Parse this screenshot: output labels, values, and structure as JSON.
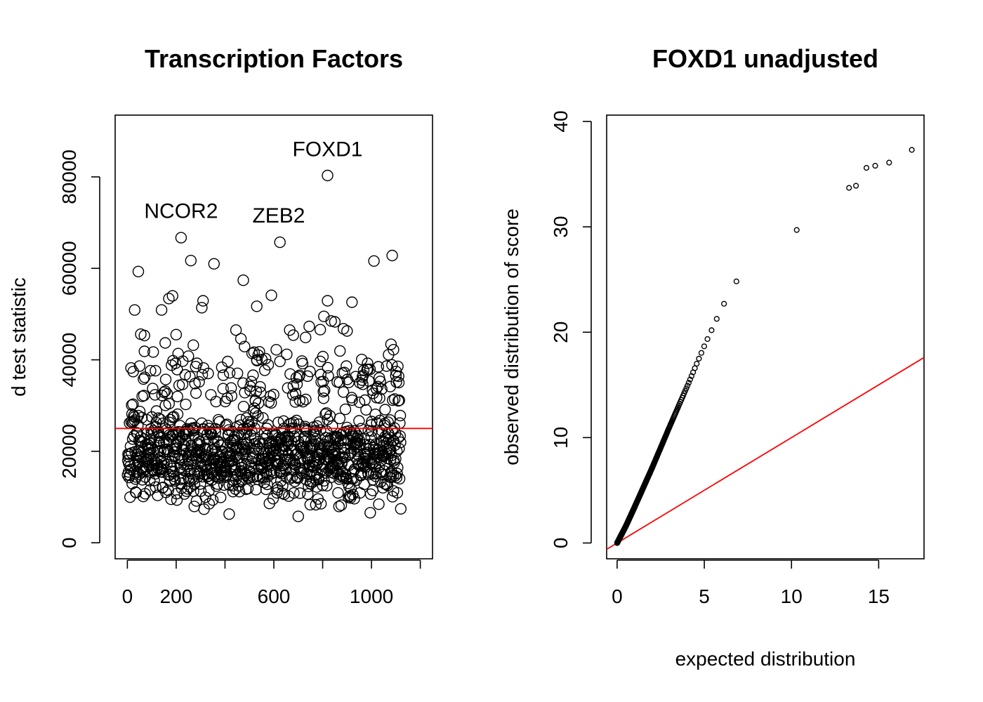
{
  "chart_data": [
    {
      "type": "scatter",
      "title": "Transcription Factors",
      "xlabel": "",
      "ylabel": "d test statistic",
      "xlim": [
        -50,
        1250
      ],
      "ylim": [
        -3500,
        93500
      ],
      "x_ticks": [
        0,
        200,
        400,
        600,
        800,
        1000,
        1200
      ],
      "x_tick_labels": [
        "0",
        "200",
        "",
        "600",
        "",
        "1000",
        ""
      ],
      "y_ticks": [
        0,
        20000,
        40000,
        60000,
        80000
      ],
      "y_tick_labels": [
        "0",
        "20000",
        "40000",
        "60000",
        "80000"
      ],
      "hline": {
        "y": 25000,
        "color": "#ff0000"
      },
      "n_points": 1120,
      "seed": 7,
      "bulk_y_range": [
        5000,
        33000
      ],
      "point_color": "#000000",
      "annotations": [
        {
          "text": "FOXD1",
          "x": 820,
          "y": 84500
        },
        {
          "text": "NCOR2",
          "x": 220,
          "y": 71000
        },
        {
          "text": "ZEB2",
          "x": 620,
          "y": 70000
        }
      ],
      "notable_points": [
        {
          "label": "FOXD1",
          "x": 820,
          "y": 80300
        },
        {
          "label": "NCOR2",
          "x": 220,
          "y": 66700
        },
        {
          "label": "ZEB2",
          "x": 625,
          "y": 65700
        },
        {
          "x": 1085,
          "y": 62800
        },
        {
          "x": 1010,
          "y": 61600
        },
        {
          "x": 260,
          "y": 61700
        },
        {
          "x": 355,
          "y": 61000
        },
        {
          "x": 45,
          "y": 59300
        },
        {
          "x": 475,
          "y": 57400
        },
        {
          "x": 590,
          "y": 54100
        },
        {
          "x": 185,
          "y": 54000
        },
        {
          "x": 170,
          "y": 53400
        },
        {
          "x": 310,
          "y": 52900
        },
        {
          "x": 820,
          "y": 52900
        },
        {
          "x": 920,
          "y": 52600
        },
        {
          "x": 530,
          "y": 51700
        },
        {
          "x": 30,
          "y": 50900
        },
        {
          "x": 140,
          "y": 50900
        },
        {
          "x": 305,
          "y": 51400
        },
        {
          "x": 805,
          "y": 49500
        },
        {
          "x": 835,
          "y": 48500
        },
        {
          "x": 850,
          "y": 48300
        },
        {
          "x": 745,
          "y": 47300
        },
        {
          "x": 790,
          "y": 46600
        },
        {
          "x": 445,
          "y": 46500
        },
        {
          "x": 885,
          "y": 46800
        },
        {
          "x": 900,
          "y": 46300
        },
        {
          "x": 665,
          "y": 46500
        },
        {
          "x": 680,
          "y": 45400
        },
        {
          "x": 55,
          "y": 45600
        },
        {
          "x": 70,
          "y": 45300
        },
        {
          "x": 200,
          "y": 45500
        },
        {
          "x": 730,
          "y": 44900
        },
        {
          "x": 465,
          "y": 44600
        },
        {
          "x": 1080,
          "y": 43400
        },
        {
          "x": 155,
          "y": 43700
        },
        {
          "x": 270,
          "y": 43200
        },
        {
          "x": 610,
          "y": 42200
        },
        {
          "x": 1090,
          "y": 42200
        },
        {
          "x": 480,
          "y": 42900
        }
      ]
    },
    {
      "type": "scatter",
      "title": "FOXD1 unadjusted",
      "xlabel": "expected distribution",
      "ylabel": "observed distribution of score",
      "xlim": [
        -0.6,
        17.6
      ],
      "ylim": [
        -1.5,
        40.6
      ],
      "x_ticks": [
        0,
        5,
        10,
        15
      ],
      "x_tick_labels": [
        "0",
        "5",
        "10",
        "15"
      ],
      "y_ticks": [
        0,
        10,
        20,
        30,
        40
      ],
      "y_tick_labels": [
        "0",
        "10",
        "20",
        "30",
        "40"
      ],
      "reference_line": {
        "slope": 1,
        "intercept": 0,
        "color": "#ff0000"
      },
      "point_color": "#000000",
      "qq_curve": [
        [
          0,
          0
        ],
        [
          0.5,
          1.6
        ],
        [
          1,
          3.4
        ],
        [
          2,
          7.1
        ],
        [
          3,
          11.0
        ],
        [
          4,
          14.8
        ],
        [
          5,
          18.7
        ],
        [
          6,
          22.3
        ],
        [
          7,
          25.3
        ],
        [
          8,
          28.0
        ],
        [
          9,
          30.0
        ],
        [
          10,
          31.5
        ],
        [
          11,
          32.2
        ],
        [
          12,
          32.5
        ],
        [
          13,
          32.8
        ]
      ],
      "qq_points_count": 700,
      "tail_points": [
        {
          "x": 10.3,
          "y": 29.7
        },
        {
          "x": 13.3,
          "y": 33.7
        },
        {
          "x": 13.7,
          "y": 33.9
        },
        {
          "x": 14.3,
          "y": 35.6
        },
        {
          "x": 14.8,
          "y": 35.8
        },
        {
          "x": 15.6,
          "y": 36.1
        },
        {
          "x": 16.9,
          "y": 37.3
        }
      ]
    }
  ]
}
